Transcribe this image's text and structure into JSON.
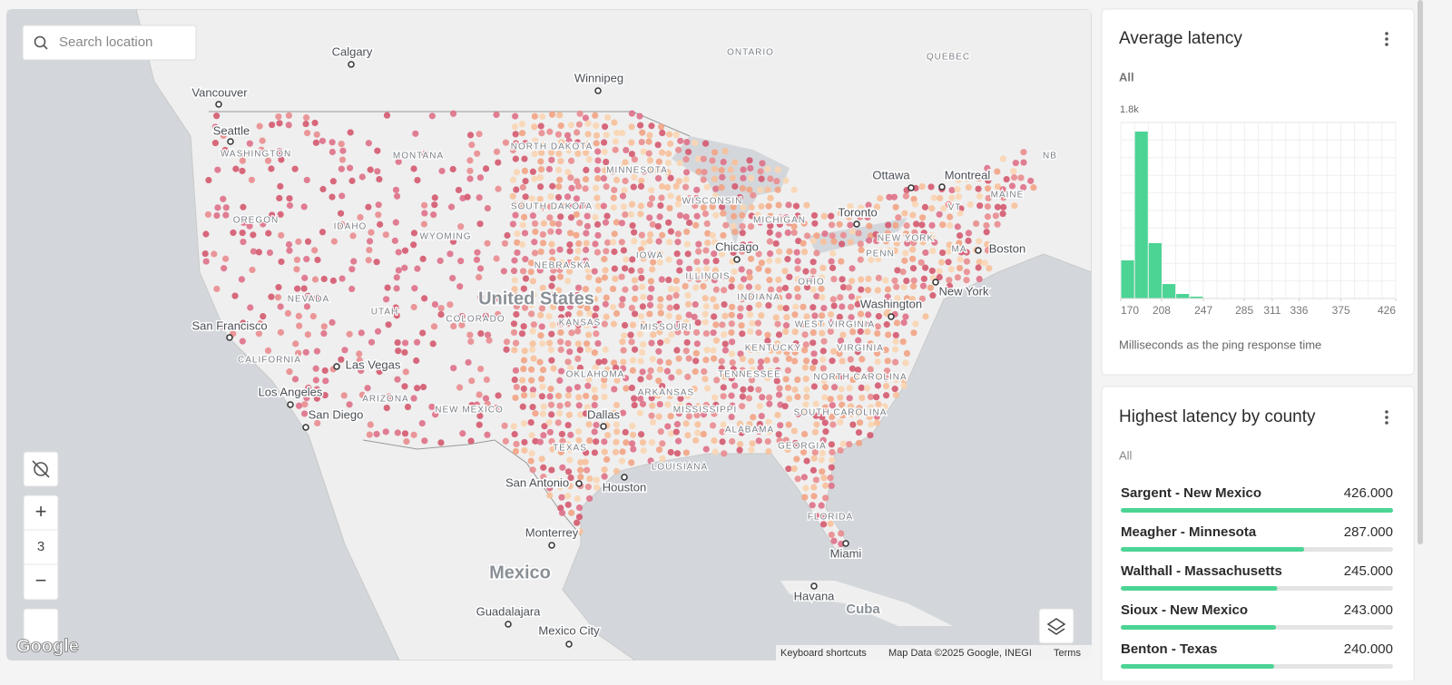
{
  "search": {
    "placeholder": "Search location"
  },
  "map": {
    "labels": [
      "Calgary",
      "Vancouver",
      "Seattle",
      "Winnipeg",
      "ONTARIO",
      "QUEBEC",
      "NB",
      "Ottawa",
      "Montreal",
      "Toronto",
      "Boston",
      "New York",
      "Washington",
      "Chicago",
      "WASHINGTON",
      "OREGON",
      "IDAHO",
      "MONTANA",
      "WYOMING",
      "NORTH DAKOTA",
      "SOUTH DAKOTA",
      "MINNESOTA",
      "WISCONSIN",
      "MICHIGAN",
      "IOWA",
      "NEBRASKA",
      "ILLINOIS",
      "INDIANA",
      "OHIO",
      "PENN",
      "NEW YORK",
      "VT",
      "MA",
      "MAINE",
      "NEVADA",
      "UTAH",
      "COLORADO",
      "United States",
      "KANSAS",
      "MISSOURI",
      "KENTUCKY",
      "WEST VIRGINIA",
      "VIRGINIA",
      "San Francisco",
      "CALIFORNIA",
      "Las Vegas",
      "Los Angeles",
      "San Diego",
      "ARIZONA",
      "NEW MEXICO",
      "OKLAHOMA",
      "ARKANSAS",
      "TENNESSEE",
      "NORTH CAROLINA",
      "SOUTH CAROLINA",
      "TEXAS",
      "Dallas",
      "LOUISIANA",
      "MISSISSIPPI",
      "ALABAMA",
      "GEORGIA",
      "San Antonio",
      "Houston",
      "FLORIDA",
      "Miami",
      "Havana",
      "Cuba",
      "Monterrey",
      "Mexico",
      "Guadalajara",
      "Mexico City"
    ],
    "zoom_controls": {
      "plus": "+",
      "level": "3",
      "minus": "−"
    },
    "attribution": {
      "logo": "Google",
      "keyboard": "Keyboard shortcuts",
      "data": "Map Data ©2025 Google, INEGI",
      "terms": "Terms"
    }
  },
  "widgets": [
    {
      "title": "Average latency",
      "filter": "All",
      "chart_data": {
        "type": "histogram",
        "bins": [
          170,
          182.8,
          195.6,
          208.4,
          221.2,
          234,
          246.8,
          259.6,
          272.4,
          285.2,
          298,
          310.8,
          323.6,
          336.4,
          349.2,
          362,
          374.8,
          387.6,
          400.4,
          413.2,
          426
        ],
        "values": [
          390,
          1707,
          566,
          148,
          46,
          19,
          5,
          3,
          2,
          1,
          1,
          2,
          1,
          1,
          1,
          1,
          0,
          1,
          0,
          1
        ],
        "color": "#4cd495",
        "xlim": [
          170,
          426
        ],
        "xticks": [
          170,
          208,
          247,
          285,
          311,
          336,
          375,
          426
        ],
        "ylim": [
          0,
          1800
        ],
        "yticks": [
          {
            "value": 1800,
            "label": "1.8k"
          }
        ],
        "xlabel": "Milliseconds as the ping response time"
      }
    },
    {
      "title": "Highest latency by county",
      "filter": "All",
      "chart_data": {
        "type": "bar_list",
        "categories": [
          "Sargent - New Mexico",
          "Meagher - Minnesota",
          "Walthall - Massachusetts",
          "Sioux - New Mexico",
          "Benton - Texas"
        ],
        "values": [
          426,
          287,
          245,
          243,
          240
        ],
        "value_labels": [
          "426.000",
          "287.000",
          "245.000",
          "243.000",
          "240.000"
        ],
        "color": "#4cd495",
        "xlim": [
          0,
          426
        ]
      }
    }
  ]
}
